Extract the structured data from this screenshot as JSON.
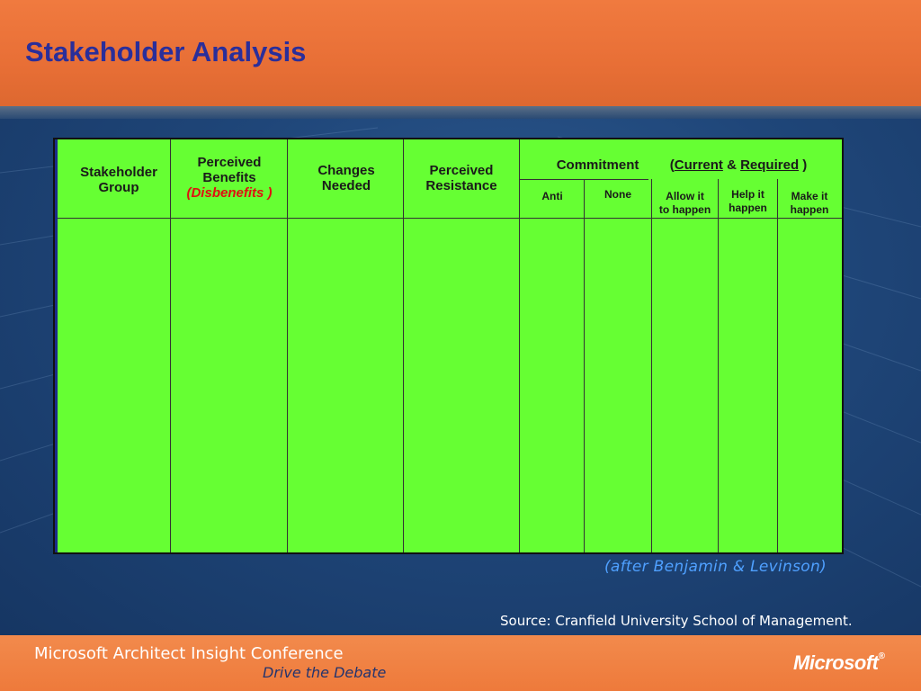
{
  "slide": {
    "title": "Stakeholder Analysis",
    "caption": "(after Benjamin & Levinson)",
    "source": "Source:  Cranfield University School of Management."
  },
  "table": {
    "col_stakeholder": "Stakeholder Group",
    "col_benefits": "Perceived Benefits",
    "col_benefits_disbenefits": "(Disbenefits )",
    "col_changes": "Changes Needed",
    "col_resistance": "Perceived Resistance",
    "commitment_label": "Commitment",
    "commitment_paren_open": "(",
    "commitment_current": "Current",
    "commitment_amp": "&",
    "commitment_required": "Required",
    "commitment_paren_close": ")",
    "sub_anti": "Anti",
    "sub_none": "None",
    "sub_allow_line1": "Allow it",
    "sub_allow_line2": "to happen",
    "sub_help_line1": "Help it",
    "sub_help_line2": "happen",
    "sub_make_line1": "Make it",
    "sub_make_line2": "happen"
  },
  "footer": {
    "conference": "Microsoft Architect Insight Conference",
    "tagline": "Drive the Debate",
    "logo": "Microsoft"
  },
  "colors": {
    "header": "#e86f36",
    "title": "#2a2e9a",
    "table_fill": "#66ff33",
    "caption": "#4fa0ff",
    "footer": "#ee7a3b"
  }
}
